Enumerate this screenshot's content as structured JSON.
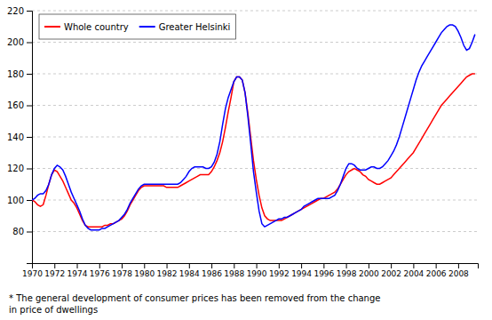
{
  "chart_data": {
    "type": "line",
    "footnote": "* The general development of consumer prices has been removed from the change\nin price of dwellings",
    "x": [
      1970,
      1970.25,
      1970.5,
      1970.75,
      1971,
      1971.25,
      1971.5,
      1971.75,
      1972,
      1972.25,
      1972.5,
      1972.75,
      1973,
      1973.25,
      1973.5,
      1973.75,
      1974,
      1974.25,
      1974.5,
      1974.75,
      1975,
      1975.25,
      1975.5,
      1975.75,
      1976,
      1976.25,
      1976.5,
      1976.75,
      1977,
      1977.25,
      1977.5,
      1977.75,
      1978,
      1978.25,
      1978.5,
      1978.75,
      1979,
      1979.25,
      1979.5,
      1979.75,
      1980,
      1980.25,
      1980.5,
      1980.75,
      1981,
      1981.25,
      1981.5,
      1981.75,
      1982,
      1982.25,
      1982.5,
      1982.75,
      1983,
      1983.25,
      1983.5,
      1983.75,
      1984,
      1984.25,
      1984.5,
      1984.75,
      1985,
      1985.25,
      1985.5,
      1985.75,
      1986,
      1986.25,
      1986.5,
      1986.75,
      1987,
      1987.25,
      1987.5,
      1987.75,
      1988,
      1988.25,
      1988.5,
      1988.75,
      1989,
      1989.25,
      1989.5,
      1989.75,
      1990,
      1990.25,
      1990.5,
      1990.75,
      1991,
      1991.25,
      1991.5,
      1991.75,
      1992,
      1992.25,
      1992.5,
      1992.75,
      1993,
      1993.25,
      1993.5,
      1993.75,
      1994,
      1994.25,
      1994.5,
      1994.75,
      1995,
      1995.25,
      1995.5,
      1995.75,
      1996,
      1996.25,
      1996.5,
      1996.75,
      1997,
      1997.25,
      1997.5,
      1997.75,
      1998,
      1998.25,
      1998.5,
      1998.75,
      1999,
      1999.25,
      1999.5,
      1999.75,
      2000,
      2000.25,
      2000.5,
      2000.75,
      2001,
      2001.25,
      2001.5,
      2001.75,
      2002,
      2002.25,
      2002.5,
      2002.75,
      2003,
      2003.25,
      2003.5,
      2003.75,
      2004,
      2004.25,
      2004.5,
      2004.75,
      2005,
      2005.25,
      2005.5,
      2005.75,
      2006,
      2006.25,
      2006.5,
      2006.75,
      2007,
      2007.25,
      2007.5,
      2007.75,
      2008,
      2008.25,
      2008.5,
      2008.75,
      2009,
      2009.25,
      2009.5
    ],
    "series": [
      {
        "name": "Whole country",
        "color": "#ff0000",
        "values": [
          100,
          99,
          97,
          96,
          97,
          103,
          110,
          116,
          119,
          118,
          115,
          112,
          108,
          104,
          100,
          98,
          95,
          91,
          87,
          84,
          83,
          83,
          83,
          83,
          83,
          83,
          84,
          84,
          85,
          85,
          86,
          87,
          88,
          90,
          93,
          97,
          100,
          103,
          106,
          108,
          109,
          109,
          109,
          109,
          109,
          109,
          109,
          109,
          108,
          108,
          108,
          108,
          108,
          109,
          110,
          111,
          112,
          113,
          114,
          115,
          116,
          116,
          116,
          116,
          118,
          121,
          125,
          130,
          137,
          146,
          156,
          165,
          175,
          178,
          178,
          176,
          168,
          155,
          140,
          125,
          113,
          103,
          95,
          90,
          88,
          87,
          87,
          87,
          87,
          87,
          88,
          89,
          90,
          91,
          92,
          93,
          94,
          95,
          96,
          97,
          98,
          99,
          100,
          101,
          101,
          102,
          103,
          104,
          105,
          107,
          110,
          113,
          116,
          118,
          119,
          120,
          119,
          118,
          116,
          115,
          113,
          112,
          111,
          110,
          110,
          111,
          112,
          113,
          114,
          116,
          118,
          120,
          122,
          124,
          126,
          128,
          130,
          133,
          136,
          139,
          142,
          145,
          148,
          151,
          154,
          157,
          160,
          162,
          164,
          166,
          168,
          170,
          172,
          174,
          176,
          178,
          179,
          180,
          180
        ]
      },
      {
        "name": "Greater Helsinki",
        "color": "#0000ff",
        "values": [
          100,
          101,
          103,
          104,
          104,
          106,
          110,
          116,
          120,
          122,
          121,
          119,
          115,
          110,
          105,
          101,
          97,
          93,
          88,
          84,
          82,
          81,
          81,
          81,
          81,
          82,
          82,
          83,
          84,
          85,
          86,
          87,
          89,
          91,
          94,
          98,
          101,
          104,
          107,
          109,
          110,
          110,
          110,
          110,
          110,
          110,
          110,
          110,
          110,
          110,
          110,
          110,
          110,
          111,
          113,
          115,
          118,
          120,
          121,
          121,
          121,
          121,
          120,
          120,
          121,
          124,
          129,
          137,
          148,
          158,
          165,
          170,
          175,
          178,
          178,
          176,
          168,
          153,
          136,
          118,
          105,
          93,
          85,
          83,
          84,
          85,
          86,
          87,
          88,
          88,
          89,
          89,
          90,
          91,
          92,
          93,
          94,
          96,
          97,
          98,
          99,
          100,
          101,
          101,
          101,
          101,
          101,
          102,
          103,
          106,
          110,
          115,
          120,
          123,
          123,
          122,
          120,
          119,
          119,
          119,
          120,
          121,
          121,
          120,
          120,
          121,
          123,
          125,
          128,
          131,
          135,
          140,
          146,
          152,
          158,
          164,
          170,
          176,
          181,
          185,
          188,
          191,
          194,
          197,
          200,
          203,
          206,
          208,
          210,
          211,
          211,
          210,
          207,
          203,
          198,
          195,
          196,
          200,
          205
        ]
      }
    ],
    "xlim": [
      1970,
      2009.75
    ],
    "xticks": [
      1970,
      1972,
      1974,
      1976,
      1978,
      1980,
      1982,
      1984,
      1986,
      1988,
      1990,
      1992,
      1994,
      1996,
      1998,
      2000,
      2002,
      2004,
      2006,
      2008
    ],
    "ylim": [
      60,
      220
    ],
    "yticks": [
      80,
      100,
      120,
      140,
      160,
      180,
      200,
      220
    ],
    "grid": true,
    "legend": "upper left"
  }
}
